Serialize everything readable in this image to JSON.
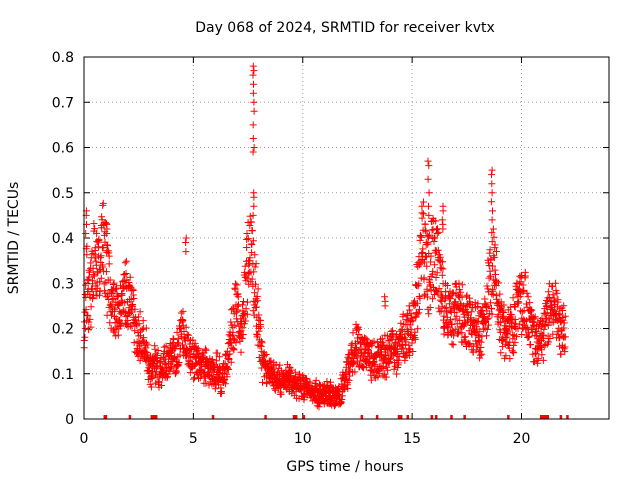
{
  "chart_data": {
    "type": "scatter",
    "title": "Day 068 of 2024, SRMTID for receiver kvtx",
    "xlabel": "GPS time / hours",
    "ylabel": "SRMTID / TECUs",
    "xlim": [
      0,
      24
    ],
    "ylim": [
      0,
      0.8
    ],
    "xticks": [
      0,
      5,
      10,
      15,
      20
    ],
    "yticks": [
      0,
      0.1,
      0.2,
      0.3,
      0.4,
      0.5,
      0.6,
      0.7,
      0.8
    ],
    "grid": true,
    "marker": "plus",
    "color": "#ff0000",
    "series": [
      {
        "name": "SRMTID",
        "profile_x": [
          0.0,
          0.1,
          0.3,
          0.5,
          0.7,
          0.9,
          1.1,
          1.4,
          1.6,
          1.8,
          2.0,
          2.2,
          2.5,
          2.8,
          3.0,
          3.2,
          3.5,
          3.8,
          4.0,
          4.2,
          4.5,
          4.7,
          5.0,
          5.3,
          5.6,
          5.9,
          6.1,
          6.3,
          6.5,
          6.8,
          7.0,
          7.2,
          7.4,
          7.6,
          7.8,
          8.0,
          8.2,
          8.5,
          8.8,
          9.0,
          9.3,
          9.6,
          9.9,
          10.2,
          10.5,
          10.8,
          11.1,
          11.4,
          11.7,
          12.0,
          12.3,
          12.6,
          12.9,
          13.2,
          13.5,
          13.8,
          14.1,
          14.4,
          14.7,
          14.9,
          15.1,
          15.3,
          15.5,
          15.7,
          15.9,
          16.1,
          16.3,
          16.5,
          16.7,
          16.9,
          17.1,
          17.4,
          17.7,
          18.0,
          18.3,
          18.6,
          18.8,
          19.0,
          19.3,
          19.6,
          19.9,
          20.2,
          20.5,
          20.8,
          21.1,
          21.4,
          21.6,
          21.8,
          22.0
        ],
        "profile_y": [
          0.2,
          0.3,
          0.28,
          0.35,
          0.32,
          0.38,
          0.3,
          0.25,
          0.22,
          0.3,
          0.27,
          0.24,
          0.18,
          0.16,
          0.1,
          0.12,
          0.11,
          0.12,
          0.15,
          0.13,
          0.2,
          0.16,
          0.13,
          0.12,
          0.11,
          0.1,
          0.12,
          0.08,
          0.13,
          0.2,
          0.25,
          0.2,
          0.3,
          0.38,
          0.3,
          0.2,
          0.11,
          0.1,
          0.09,
          0.08,
          0.09,
          0.08,
          0.07,
          0.07,
          0.06,
          0.05,
          0.06,
          0.05,
          0.05,
          0.1,
          0.15,
          0.16,
          0.14,
          0.13,
          0.13,
          0.14,
          0.15,
          0.16,
          0.18,
          0.19,
          0.22,
          0.3,
          0.4,
          0.32,
          0.35,
          0.38,
          0.3,
          0.25,
          0.23,
          0.22,
          0.24,
          0.22,
          0.2,
          0.19,
          0.21,
          0.32,
          0.35,
          0.22,
          0.18,
          0.2,
          0.27,
          0.25,
          0.18,
          0.16,
          0.2,
          0.25,
          0.22,
          0.2,
          0.19
        ],
        "sample_step_hours": 0.02,
        "spikes": [
          {
            "x": 7.75,
            "values": [
              0.78,
              0.77,
              0.76,
              0.74,
              0.72,
              0.7,
              0.68,
              0.65,
              0.62,
              0.6,
              0.59,
              0.5,
              0.49,
              0.47,
              0.45
            ]
          },
          {
            "x": 15.75,
            "values": [
              0.57,
              0.56,
              0.53,
              0.5,
              0.47,
              0.45
            ]
          },
          {
            "x": 18.65,
            "values": [
              0.55,
              0.54,
              0.52,
              0.5,
              0.48,
              0.46,
              0.44
            ]
          },
          {
            "x": 16.4,
            "values": [
              0.47,
              0.46,
              0.44,
              0.43,
              0.42
            ]
          },
          {
            "x": 0.1,
            "values": [
              0.46,
              0.45,
              0.43,
              0.41
            ]
          },
          {
            "x": 1.05,
            "values": [
              0.43,
              0.42,
              0.41
            ]
          },
          {
            "x": 4.65,
            "values": [
              0.4,
              0.39,
              0.37
            ]
          },
          {
            "x": 13.75,
            "values": [
              0.27,
              0.26,
              0.25
            ]
          }
        ],
        "gap_markers_x": [
          0.95,
          1.0,
          2.1,
          3.1,
          3.2,
          3.3,
          5.9,
          8.3,
          9.6,
          9.7,
          10.05,
          12.7,
          13.4,
          14.4,
          14.5,
          14.8,
          15.9,
          16.1,
          16.8,
          17.4,
          19.4,
          20.9,
          21.0,
          21.1,
          21.2,
          21.8,
          22.1
        ]
      }
    ]
  }
}
